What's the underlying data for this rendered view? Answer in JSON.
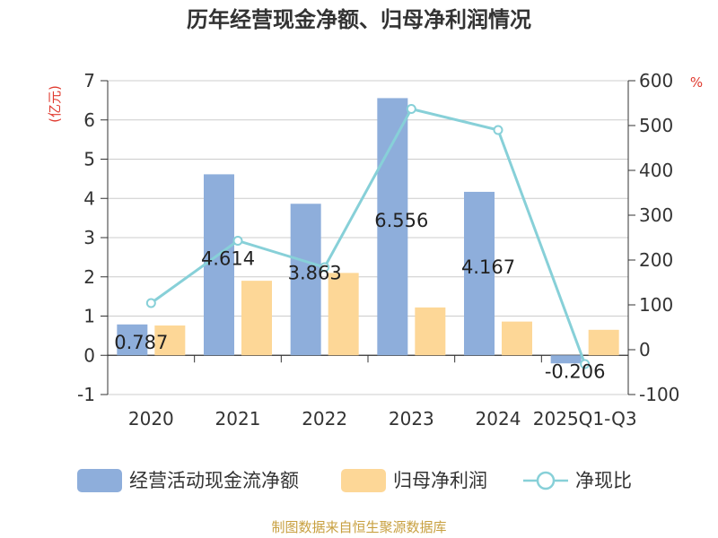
{
  "chart_data": {
    "type": "bar",
    "title": "历年经营现金净额、归母净利润情况",
    "categories": [
      "2020",
      "2021",
      "2022",
      "2023",
      "2024",
      "2025Q1-Q3"
    ],
    "series": [
      {
        "name": "经营活动现金流净额",
        "type": "bar",
        "axis": "left",
        "color": "#8eaedb",
        "values": [
          0.787,
          4.614,
          3.863,
          6.556,
          4.167,
          -0.206
        ],
        "labels": [
          "0.787",
          "4.614",
          "3.863",
          "6.556",
          "4.167",
          "-0.206"
        ]
      },
      {
        "name": "归母净利润",
        "type": "bar",
        "axis": "left",
        "color": "#fdd797",
        "values": [
          0.76,
          1.9,
          2.1,
          1.22,
          0.86,
          0.65
        ]
      },
      {
        "name": "净现比",
        "type": "line",
        "axis": "right",
        "color": "#87d0d8",
        "values": [
          104,
          243,
          184,
          537,
          490,
          -32
        ]
      }
    ],
    "y_left": {
      "unit_label": "(亿元)",
      "range": [
        -1,
        7
      ],
      "ticks": [
        -1,
        0,
        1,
        2,
        3,
        4,
        5,
        6,
        7
      ]
    },
    "y_right": {
      "unit_label": "%",
      "range": [
        -100,
        600
      ],
      "ticks": [
        -100,
        0,
        100,
        200,
        300,
        400,
        500,
        600
      ]
    },
    "grid": true,
    "legend_position": "bottom"
  },
  "footer": {
    "source": "制图数据来自恒生聚源数据库"
  }
}
